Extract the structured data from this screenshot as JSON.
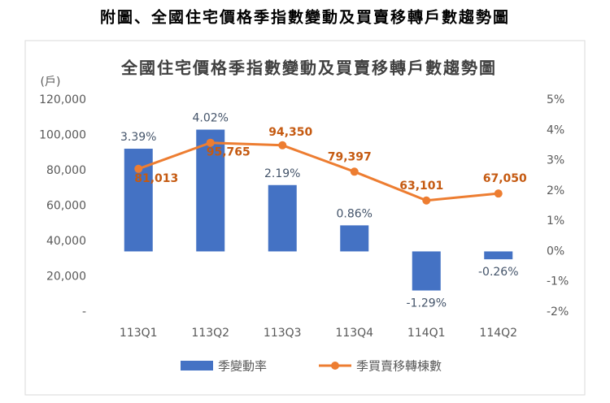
{
  "header": {
    "title": "附圖、全國住宅價格季指數變動及買賣移轉戶數趨勢圖"
  },
  "chart_data": {
    "type": "bar-line",
    "title": "全國住宅價格季指數變動及買賣移轉戶數趨勢圖",
    "y_label": "(戶)",
    "categories": [
      "113Q1",
      "113Q2",
      "113Q3",
      "113Q4",
      "114Q1",
      "114Q2"
    ],
    "series": [
      {
        "name": "季變動率",
        "type": "bar",
        "axis": "y2",
        "color": "#4472c4",
        "values": [
          3.39,
          4.02,
          2.19,
          0.86,
          -1.29,
          -0.26
        ],
        "value_labels": [
          "3.39%",
          "4.02%",
          "2.19%",
          "0.86%",
          "-1.29%",
          "-0.26%"
        ]
      },
      {
        "name": "季買賣移轉棟數",
        "type": "line",
        "axis": "y",
        "color": "#ed7d31",
        "values": [
          81013,
          95765,
          94350,
          79397,
          63101,
          67050
        ],
        "value_labels": [
          "81,013",
          "95,765",
          "94,350",
          "79,397",
          "63,101",
          "67,050"
        ]
      }
    ],
    "ylim": [
      0,
      120000
    ],
    "yticks": [
      {
        "value": 0,
        "label": "-"
      },
      {
        "value": 20000,
        "label": "20,000"
      },
      {
        "value": 40000,
        "label": "40,000"
      },
      {
        "value": 60000,
        "label": "60,000"
      },
      {
        "value": 80000,
        "label": "80,000"
      },
      {
        "value": 100000,
        "label": "100,000"
      },
      {
        "value": 120000,
        "label": "120,000"
      }
    ],
    "y2lim": [
      -2,
      5
    ],
    "y2ticks": [
      {
        "value": -2,
        "label": "-2%"
      },
      {
        "value": -1,
        "label": "-1%"
      },
      {
        "value": 0,
        "label": "0%"
      },
      {
        "value": 1,
        "label": "1%"
      },
      {
        "value": 2,
        "label": "2%"
      },
      {
        "value": 3,
        "label": "3%"
      },
      {
        "value": 4,
        "label": "4%"
      },
      {
        "value": 5,
        "label": "5%"
      }
    ],
    "grid": false,
    "legend": "bottom"
  }
}
